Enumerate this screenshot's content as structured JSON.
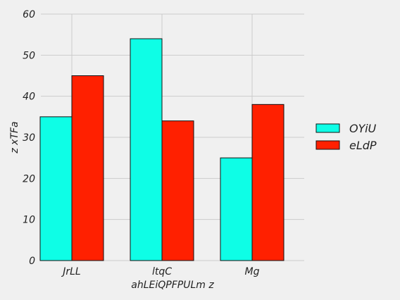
{
  "chart_data": {
    "type": "bar",
    "categories": [
      "JrLL",
      "ltqC",
      "Mg"
    ],
    "series": [
      {
        "name": "OYiU",
        "values": [
          35,
          54,
          25
        ],
        "color": "#0efee6"
      },
      {
        "name": "eLdP",
        "values": [
          45,
          34,
          38
        ],
        "color": "#ff2000"
      }
    ],
    "title": "",
    "xlabel": "ahLEiQPFPULm z",
    "ylabel": "z xTFa",
    "ylim": [
      0,
      60
    ],
    "yticks": [
      0,
      10,
      20,
      30,
      40,
      50,
      60
    ],
    "grid": true,
    "legend_position": "right"
  }
}
